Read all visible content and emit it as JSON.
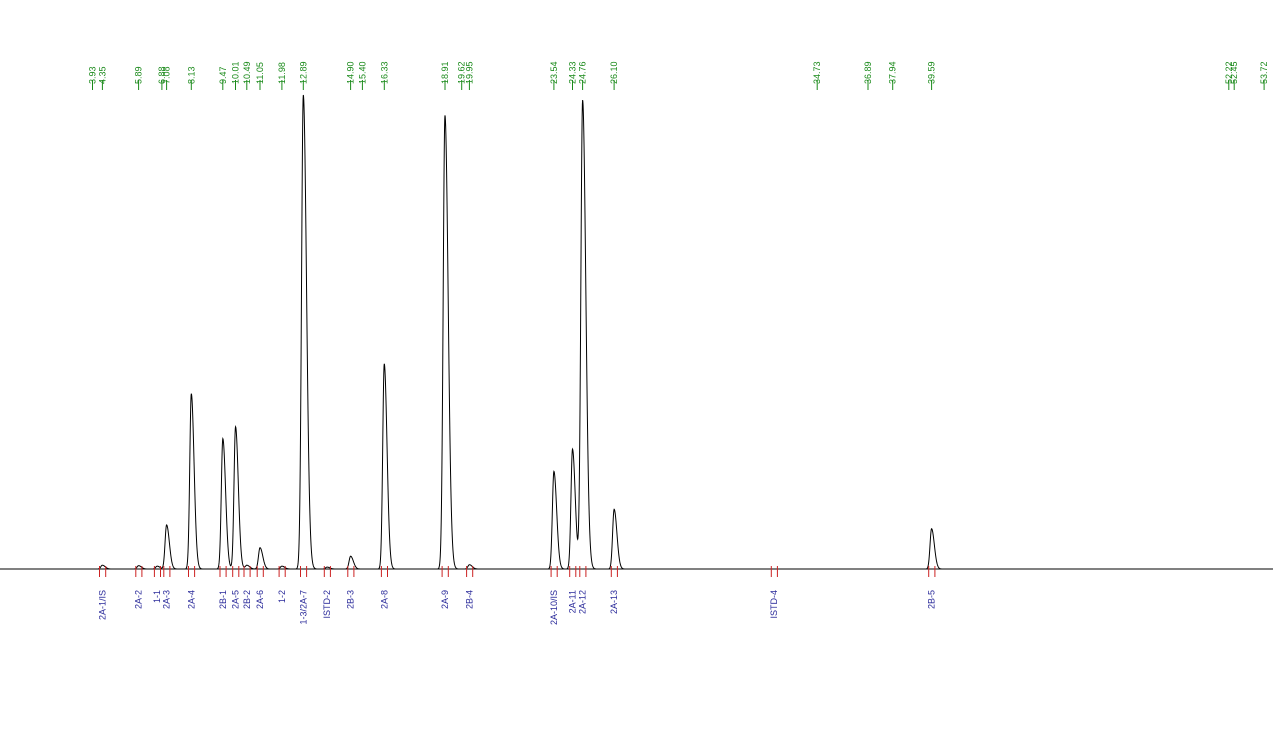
{
  "chart_data": {
    "type": "line",
    "title": "",
    "xlabel": "",
    "ylabel": "",
    "grid": false,
    "xlim": [
      0,
      54.1
    ],
    "ylim": [
      0,
      100
    ],
    "colors": {
      "trace": "#000000",
      "retention_labels": "#1a8a1a",
      "peak_labels": "#2a2a9a",
      "integration_marks": "#cc2222"
    },
    "retention_times": [
      "3.93",
      "4.35",
      "5.89",
      "6.88",
      "7.08",
      "8.13",
      "9.47",
      "10.01",
      "10.49",
      "11.05",
      "11.98",
      "12.89",
      "14.90",
      "15.40",
      "16.33",
      "18.91",
      "19.62",
      "19.95",
      "23.54",
      "24.33",
      "24.76",
      "26.10",
      "34.73",
      "36.89",
      "37.94",
      "39.59",
      "52.22",
      "52.45",
      "53.72"
    ],
    "peaks": [
      {
        "label": "2A-1/IS",
        "x": 4.35,
        "y": 0.8
      },
      {
        "label": "2A-2",
        "x": 5.89,
        "y": 0.7
      },
      {
        "label": "1-1",
        "x": 6.68,
        "y": 0.6
      },
      {
        "label": "2A-3",
        "x": 7.08,
        "y": 9.3
      },
      {
        "label": "2A-4",
        "x": 8.13,
        "y": 37.0
      },
      {
        "label": "2B-1",
        "x": 9.47,
        "y": 27.5
      },
      {
        "label": "2A-5",
        "x": 10.01,
        "y": 30.0
      },
      {
        "label": "2B-2",
        "x": 10.49,
        "y": 0.8
      },
      {
        "label": "2A-6",
        "x": 11.05,
        "y": 4.5
      },
      {
        "label": "1-2",
        "x": 11.98,
        "y": 0.6
      },
      {
        "label": "1-3/2A-7",
        "x": 12.89,
        "y": 100.0
      },
      {
        "label": "ISTD-2",
        "x": 13.9,
        "y": 0.4
      },
      {
        "label": "2B-3",
        "x": 14.9,
        "y": 2.7
      },
      {
        "label": "2A-8",
        "x": 16.33,
        "y": 43.3
      },
      {
        "label": "2A-9",
        "x": 18.91,
        "y": 95.7
      },
      {
        "label": "2B-4",
        "x": 19.95,
        "y": 0.9
      },
      {
        "label": "2A-10/IS",
        "x": 23.54,
        "y": 20.6
      },
      {
        "label": "2A-11",
        "x": 24.33,
        "y": 25.3
      },
      {
        "label": "2A-12",
        "x": 24.76,
        "y": 98.9
      },
      {
        "label": "2A-13",
        "x": 26.1,
        "y": 12.6
      },
      {
        "label": "ISTD-4",
        "x": 32.9,
        "y": 0.0
      },
      {
        "label": "2B-5",
        "x": 39.59,
        "y": 8.5
      }
    ]
  }
}
